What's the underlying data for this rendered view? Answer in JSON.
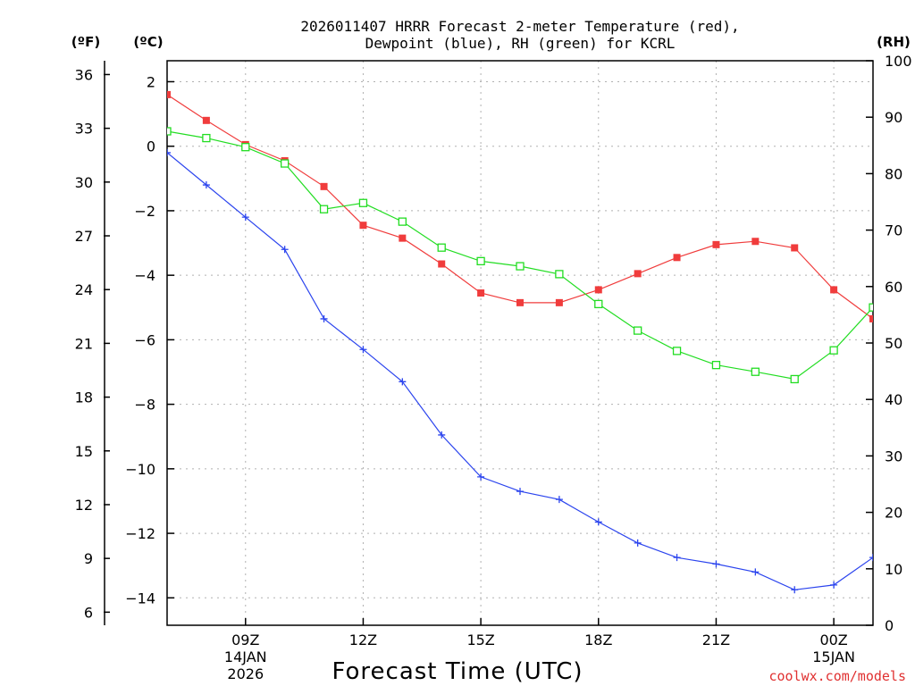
{
  "chart_data": {
    "type": "line",
    "title_line1": "2026011407 HRRR Forecast 2-meter Temperature (red),",
    "title_line2": "Dewpoint (blue), RH (green) for KCRL",
    "xlabel": "Forecast Time (UTC)",
    "credit": "coolwx.com/models",
    "units": {
      "fahrenheit": "(ºF)",
      "celsius": "(ºC)",
      "rh": "(RH)"
    },
    "x_hours": [
      7,
      8,
      9,
      10,
      11,
      12,
      13,
      14,
      15,
      16,
      17,
      18,
      19,
      20,
      21,
      22,
      23,
      24,
      25
    ],
    "xlim": [
      7,
      25
    ],
    "x_ticks": [
      {
        "hour": 9,
        "label": "09Z",
        "sub1": "14JAN",
        "sub2": "2026"
      },
      {
        "hour": 12,
        "label": "12Z",
        "sub1": "",
        "sub2": ""
      },
      {
        "hour": 15,
        "label": "15Z",
        "sub1": "",
        "sub2": ""
      },
      {
        "hour": 18,
        "label": "18Z",
        "sub1": "",
        "sub2": ""
      },
      {
        "hour": 21,
        "label": "21Z",
        "sub1": "",
        "sub2": ""
      },
      {
        "hour": 24,
        "label": "00Z",
        "sub1": "15JAN",
        "sub2": ""
      }
    ],
    "celsius_axis": {
      "ylim": [
        -14.85,
        2.65
      ],
      "ticks": [
        "2",
        "0",
        "−2",
        "−4",
        "−6",
        "−8",
        "−10",
        "−12",
        "−14"
      ],
      "tick_values": [
        2,
        0,
        -2,
        -4,
        -6,
        -8,
        -10,
        -12,
        -14
      ]
    },
    "fahrenheit_axis": {
      "ticks": [
        "36",
        "33",
        "30",
        "27",
        "24",
        "21",
        "18",
        "15",
        "12",
        "9",
        "6"
      ],
      "tick_values": [
        36,
        33,
        30,
        27,
        24,
        21,
        18,
        15,
        12,
        9,
        6
      ]
    },
    "rh_axis": {
      "ylim": [
        0,
        100
      ],
      "ticks": [
        "100",
        "90",
        "80",
        "70",
        "60",
        "50",
        "40",
        "30",
        "20",
        "10",
        "0"
      ],
      "tick_values": [
        100,
        90,
        80,
        70,
        60,
        50,
        40,
        30,
        20,
        10,
        0
      ]
    },
    "series": [
      {
        "name": "Temperature",
        "axis": "celsius",
        "color": "#f03c3c",
        "marker": "filled-square",
        "values": [
          1.6,
          0.8,
          0.05,
          -0.45,
          -1.25,
          -2.45,
          -2.85,
          -3.65,
          -4.55,
          -4.85,
          -4.85,
          -4.45,
          -3.95,
          -3.45,
          -3.05,
          -2.95,
          -3.15,
          -4.45,
          -5.35
        ]
      },
      {
        "name": "Dewpoint",
        "axis": "celsius",
        "color": "#2b44ee",
        "marker": "plus",
        "values": [
          -0.2,
          -1.2,
          -2.2,
          -3.2,
          -5.35,
          -6.3,
          -7.3,
          -8.95,
          -10.25,
          -10.7,
          -10.95,
          -11.65,
          -12.3,
          -12.75,
          -12.95,
          -13.2,
          -13.75,
          -13.6,
          -12.75
        ]
      },
      {
        "name": "RH",
        "axis": "rh",
        "color": "#22dd22",
        "marker": "open-square",
        "values": [
          87.5,
          86.3,
          84.7,
          81.8,
          73.7,
          74.8,
          71.5,
          66.9,
          64.5,
          63.6,
          62.2,
          56.9,
          52.2,
          48.6,
          46.1,
          44.9,
          43.6,
          48.7,
          56.3
        ]
      }
    ]
  }
}
